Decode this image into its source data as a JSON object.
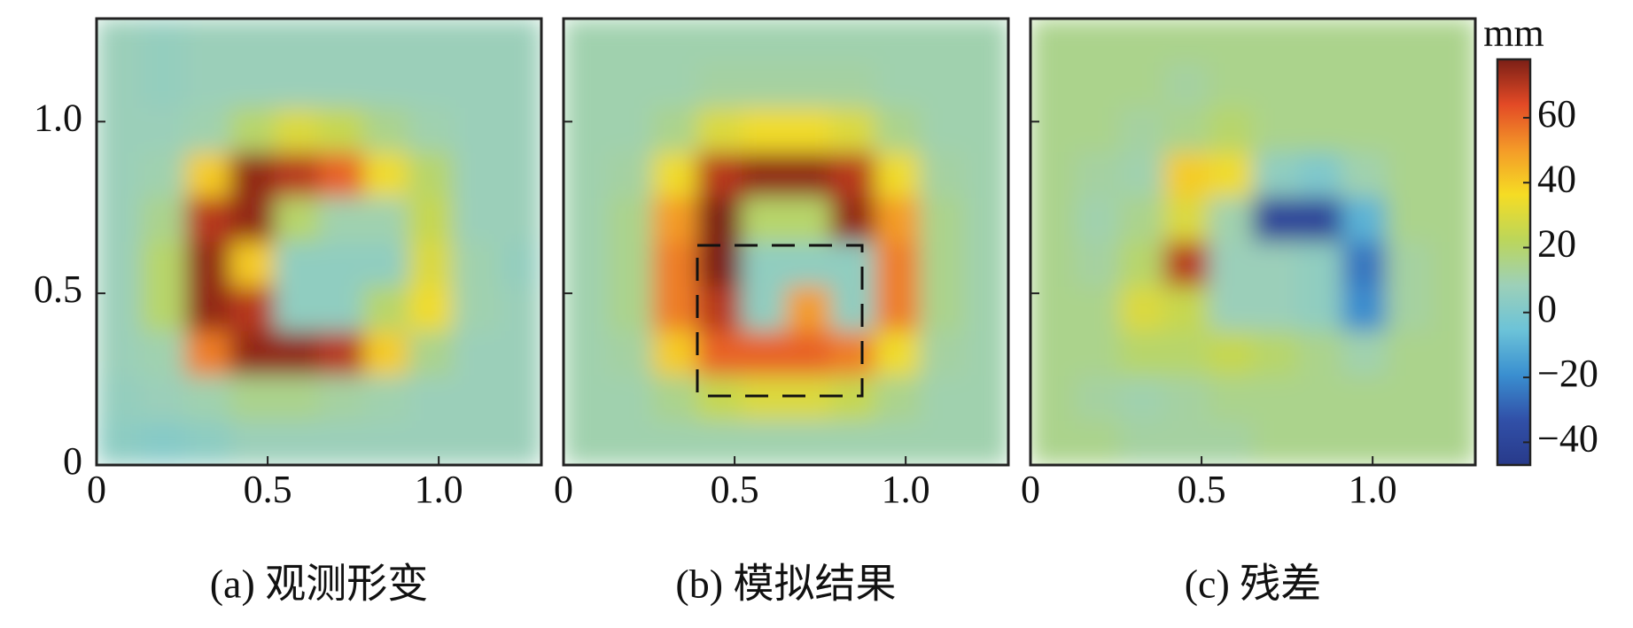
{
  "chart_data": [
    {
      "type": "heatmap",
      "title": "(a) 观测形变",
      "x": [
        0.065,
        0.195,
        0.325,
        0.455,
        0.585,
        0.715,
        0.845,
        0.975,
        1.105,
        1.235
      ],
      "y": [
        1.235,
        1.105,
        0.975,
        0.845,
        0.715,
        0.585,
        0.455,
        0.325,
        0.195,
        0.065
      ],
      "z": [
        [
          8,
          6,
          8,
          8,
          8,
          8,
          8,
          8,
          8,
          8
        ],
        [
          8,
          6,
          8,
          8,
          8,
          8,
          8,
          8,
          8,
          8
        ],
        [
          8,
          8,
          10,
          20,
          30,
          25,
          15,
          10,
          8,
          8
        ],
        [
          8,
          10,
          40,
          75,
          70,
          60,
          35,
          20,
          8,
          8
        ],
        [
          8,
          15,
          70,
          75,
          20,
          10,
          10,
          25,
          8,
          8
        ],
        [
          8,
          20,
          75,
          40,
          5,
          5,
          5,
          30,
          10,
          6
        ],
        [
          8,
          20,
          75,
          70,
          5,
          5,
          20,
          35,
          10,
          8
        ],
        [
          8,
          10,
          55,
          75,
          75,
          70,
          40,
          15,
          8,
          8
        ],
        [
          6,
          8,
          10,
          15,
          15,
          12,
          10,
          8,
          8,
          8
        ],
        [
          4,
          2,
          4,
          8,
          8,
          8,
          8,
          8,
          8,
          8
        ]
      ],
      "xlim": [
        0,
        1.3
      ],
      "ylim": [
        0,
        1.3
      ],
      "xticks": [
        0,
        0.5,
        {
          "value": 1,
          "label": "1.0"
        }
      ],
      "yticks": [
        0,
        0.5,
        {
          "value": 1,
          "label": "1.0"
        }
      ],
      "ytick_labels": true
    },
    {
      "type": "heatmap",
      "title": "(b) 模拟结果",
      "x": [
        0.065,
        0.195,
        0.325,
        0.455,
        0.585,
        0.715,
        0.845,
        0.975,
        1.105,
        1.235
      ],
      "y": [
        1.235,
        1.105,
        0.975,
        0.845,
        0.715,
        0.585,
        0.455,
        0.325,
        0.195,
        0.065
      ],
      "z": [
        [
          10,
          10,
          10,
          10,
          10,
          10,
          10,
          10,
          10,
          10
        ],
        [
          10,
          10,
          10,
          12,
          12,
          12,
          12,
          10,
          10,
          10
        ],
        [
          10,
          10,
          15,
          30,
          35,
          35,
          30,
          15,
          10,
          10
        ],
        [
          10,
          12,
          35,
          70,
          75,
          75,
          70,
          35,
          12,
          10
        ],
        [
          10,
          15,
          50,
          78,
          20,
          20,
          75,
          50,
          15,
          10
        ],
        [
          10,
          15,
          55,
          78,
          5,
          5,
          5,
          55,
          15,
          10
        ],
        [
          10,
          15,
          55,
          70,
          5,
          50,
          5,
          55,
          15,
          10
        ],
        [
          10,
          12,
          40,
          60,
          60,
          60,
          55,
          35,
          12,
          10
        ],
        [
          10,
          10,
          15,
          25,
          30,
          30,
          25,
          15,
          10,
          10
        ],
        [
          10,
          10,
          10,
          10,
          10,
          10,
          10,
          10,
          10,
          10
        ]
      ],
      "xlim": [
        0,
        1.3
      ],
      "ylim": [
        0,
        1.3
      ],
      "xticks": [
        0,
        0.5,
        {
          "value": 1,
          "label": "1.0"
        }
      ],
      "yticks": [
        0,
        0.5,
        {
          "value": 1,
          "label": "1.0"
        }
      ],
      "ytick_labels": false
    },
    {
      "type": "heatmap",
      "title": "(c) 残差",
      "x": [
        0.065,
        0.195,
        0.325,
        0.455,
        0.585,
        0.715,
        0.845,
        0.975,
        1.105,
        1.235
      ],
      "y": [
        1.235,
        1.105,
        0.975,
        0.845,
        0.715,
        0.585,
        0.455,
        0.325,
        0.195,
        0.065
      ],
      "z": [
        [
          15,
          15,
          15,
          15,
          15,
          15,
          15,
          15,
          15,
          15
        ],
        [
          15,
          15,
          15,
          12,
          15,
          15,
          15,
          15,
          15,
          15
        ],
        [
          15,
          15,
          12,
          15,
          20,
          15,
          15,
          15,
          15,
          15
        ],
        [
          15,
          12,
          10,
          40,
          35,
          5,
          0,
          10,
          15,
          15
        ],
        [
          15,
          10,
          15,
          30,
          10,
          -40,
          -40,
          -10,
          15,
          15
        ],
        [
          15,
          12,
          20,
          70,
          8,
          8,
          5,
          -25,
          12,
          15
        ],
        [
          15,
          15,
          30,
          25,
          8,
          8,
          5,
          -20,
          12,
          15
        ],
        [
          15,
          15,
          20,
          20,
          25,
          20,
          15,
          10,
          15,
          15
        ],
        [
          15,
          12,
          10,
          12,
          15,
          15,
          15,
          15,
          15,
          15
        ],
        [
          15,
          15,
          12,
          12,
          12,
          15,
          15,
          15,
          15,
          15
        ]
      ],
      "xlim": [
        0,
        1.3
      ],
      "ylim": [
        0,
        1.3
      ],
      "xticks": [
        0,
        0.5,
        {
          "value": 1,
          "label": "1.0"
        }
      ],
      "yticks": [
        0,
        0.5,
        {
          "value": 1,
          "label": "1.0"
        }
      ],
      "ytick_labels": false,
      "colorbar": {
        "label": "mm",
        "lim": [
          -47,
          78
        ],
        "ticks": [
          {
            "value": -40,
            "label": "−40"
          },
          {
            "value": -20,
            "label": "−20"
          },
          0,
          20,
          40,
          60
        ],
        "colors": [
          "#283a8a",
          "#3150a8",
          "#3a8fd0",
          "#6cc3d8",
          "#9dd0b8",
          "#bcd65a",
          "#f5dc24",
          "#f49a28",
          "#e34a26",
          "#7b1f16"
        ]
      }
    }
  ]
}
